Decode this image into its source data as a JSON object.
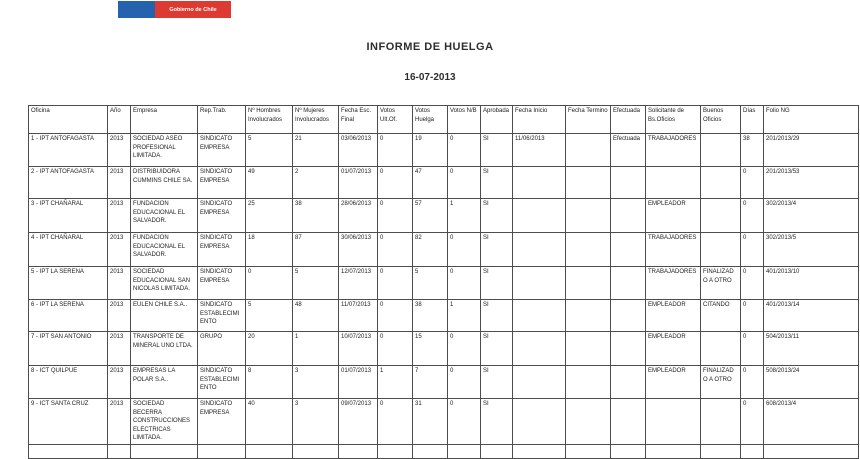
{
  "logo": {
    "text": "Gobierno de Chile",
    "blue": "#2563af",
    "red": "#dd3b31"
  },
  "title": "INFORME DE HUELGA",
  "date": "16-07-2013",
  "table": {
    "columns": [
      "Oficina",
      "Año",
      "Empresa",
      "Rep.Trab.",
      "Nº Hombres Involucrados",
      "Nº Mujeres Involucrados",
      "Fecha Esc. Final",
      "Votos Ult.Of.",
      "Votos Huelga",
      "Votos N/B",
      "Aprobada",
      "Fecha Inicio",
      "Fecha Termino",
      "Efectuada",
      "Solicitante de Bs.Oficios",
      "Buenos Oficios",
      "Días",
      "Folio NG"
    ],
    "rows": [
      [
        "1 - IPT ANTOFAGASTA",
        "2013",
        "SOCIEDAD ASEO PROFESIONAL LIMITADA.",
        "SINDICATO EMPRESA",
        "5",
        "21",
        "03/06/2013",
        "0",
        "19",
        "0",
        "SI",
        "11/06/2013",
        "",
        "Efectuada",
        "TRABAJADORES",
        "",
        "38",
        "201/2013/29"
      ],
      [
        "2 - IPT ANTOFAGASTA",
        "2013",
        "DISTRIBUIDORA CUMMINS CHILE SA.",
        "SINDICATO EMPRESA",
        "49",
        "2",
        "01/07/2013",
        "0",
        "47",
        "0",
        "SI",
        "",
        "",
        "",
        "",
        "",
        "0",
        "201/2013/53"
      ],
      [
        "3 - IPT CHAÑARAL",
        "2013",
        "FUNDACION EDUCACIONAL EL SALVADOR.",
        "SINDICATO EMPRESA",
        "25",
        "38",
        "28/06/2013",
        "0",
        "57",
        "1",
        "SI",
        "",
        "",
        "",
        "EMPLEADOR",
        "",
        "0",
        "302/2013/4"
      ],
      [
        "4 - IPT CHAÑARAL",
        "2013",
        "FUNDACION EDUCACIONAL EL SALVADOR.",
        "SINDICATO EMPRESA",
        "18",
        "87",
        "30/06/2013",
        "0",
        "82",
        "0",
        "SI",
        "",
        "",
        "",
        "TRABAJADORES",
        "",
        "0",
        "302/2013/5"
      ],
      [
        "5 - IPT LA SERENA",
        "2013",
        "SOCIEDAD EDUCACIONAL SAN NICOLAS LIMITADA.",
        "SINDICATO EMPRESA",
        "0",
        "5",
        "12/07/2013",
        "0",
        "5",
        "0",
        "SI",
        "",
        "",
        "",
        "TRABAJADORES",
        "FINALIZADO A OTRO",
        "0",
        "401/2013/10"
      ],
      [
        "6 - IPT LA SERENA",
        "2013",
        "EULEN CHILE S.A..",
        "SINDICATO ESTABLECIMIENTO",
        "5",
        "48",
        "11/07/2013",
        "0",
        "38",
        "1",
        "SI",
        "",
        "",
        "",
        "EMPLEADOR",
        "CITANDO",
        "0",
        "401/2013/14"
      ],
      [
        "7 - IPT SAN ANTONIO",
        "2013",
        "TRANSPORTE DE MINERAL UNO LTDA.",
        "GRUPO",
        "20",
        "1",
        "10/07/2013",
        "0",
        "15",
        "0",
        "SI",
        "",
        "",
        "",
        "EMPLEADOR",
        "",
        "0",
        "504/2013/11"
      ],
      [
        "8 - ICT QUILPUE",
        "2013",
        "EMPRESAS LA POLAR S.A..",
        "SINDICATO ESTABLECIMIENTO",
        "8",
        "3",
        "01/07/2013",
        "1",
        "7",
        "0",
        "SI",
        "",
        "",
        "",
        "EMPLEADOR",
        "FINALIZADO A OTRO",
        "0",
        "508/2013/24"
      ],
      [
        "9 - ICT SANTA CRUZ",
        "2013",
        "SOCIEDAD BECERRA CONSTRUCCIONES ELECTRICAS LIMITADA.",
        "SINDICATO EMPRESA",
        "40",
        "3",
        "09/07/2013",
        "0",
        "31",
        "0",
        "SI",
        "",
        "",
        "",
        "",
        "",
        "0",
        "608/2013/4"
      ]
    ]
  }
}
